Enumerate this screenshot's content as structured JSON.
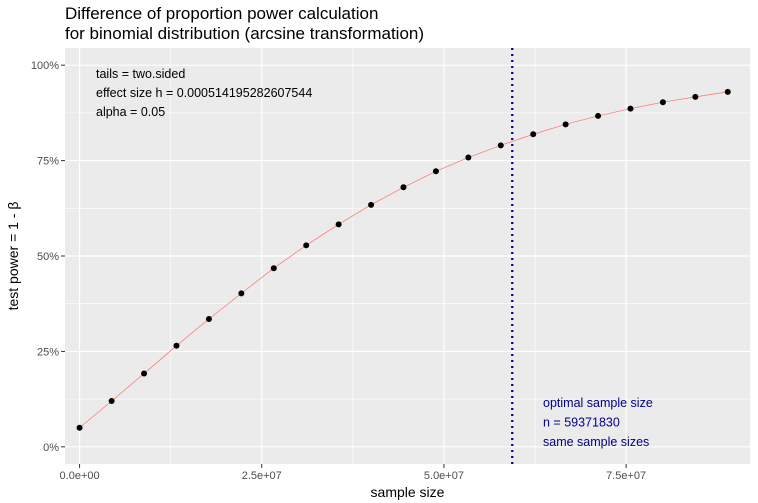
{
  "chart_data": {
    "type": "line",
    "title_line1": "Difference of proportion power calculation",
    "title_line2": "for binomial distribution (arcsine transformation)",
    "xlabel": "sample size",
    "ylabel": "test power = 1 - β",
    "xlim": [
      -2000000,
      92000000
    ],
    "ylim": [
      -0.045,
      1.045
    ],
    "x_ticks": [
      0,
      25000000,
      50000000,
      75000000
    ],
    "x_tick_labels": [
      "0.0e+00",
      "2.5e+07",
      "5.0e+07",
      "7.5e+07"
    ],
    "y_ticks": [
      0,
      0.25,
      0.5,
      0.75,
      1.0
    ],
    "y_tick_labels": [
      "0%",
      "25%",
      "50%",
      "75%",
      "100%"
    ],
    "grid": true,
    "series": [
      {
        "x": [
          0,
          4400000,
          8850000,
          13300000,
          17750000,
          22200000,
          26650000,
          31100000,
          35550000,
          40000000,
          44450000,
          48900000,
          53350000,
          57800000,
          62250000,
          66700000,
          71150000,
          75600000,
          80050000,
          84500000,
          88950000
        ],
        "values": [
          0.05,
          0.12,
          0.192,
          0.265,
          0.335,
          0.402,
          0.468,
          0.528,
          0.583,
          0.634,
          0.68,
          0.722,
          0.758,
          0.79,
          0.819,
          0.845,
          0.867,
          0.886,
          0.903,
          0.917,
          0.93
        ]
      }
    ],
    "line_color": "#F8766D",
    "point_color": "#000000",
    "vline": {
      "x": 59371830,
      "color": "#00008B"
    },
    "annotation_top": [
      "tails = two.sided",
      "effect size h = 0.000514195282607544",
      "alpha = 0.05"
    ],
    "annotation_bottom": [
      "optimal sample size",
      "n = 59371830",
      "same sample sizes"
    ],
    "annotation_bottom_color": "#00008B",
    "panel_background": "#EBEBEB"
  }
}
